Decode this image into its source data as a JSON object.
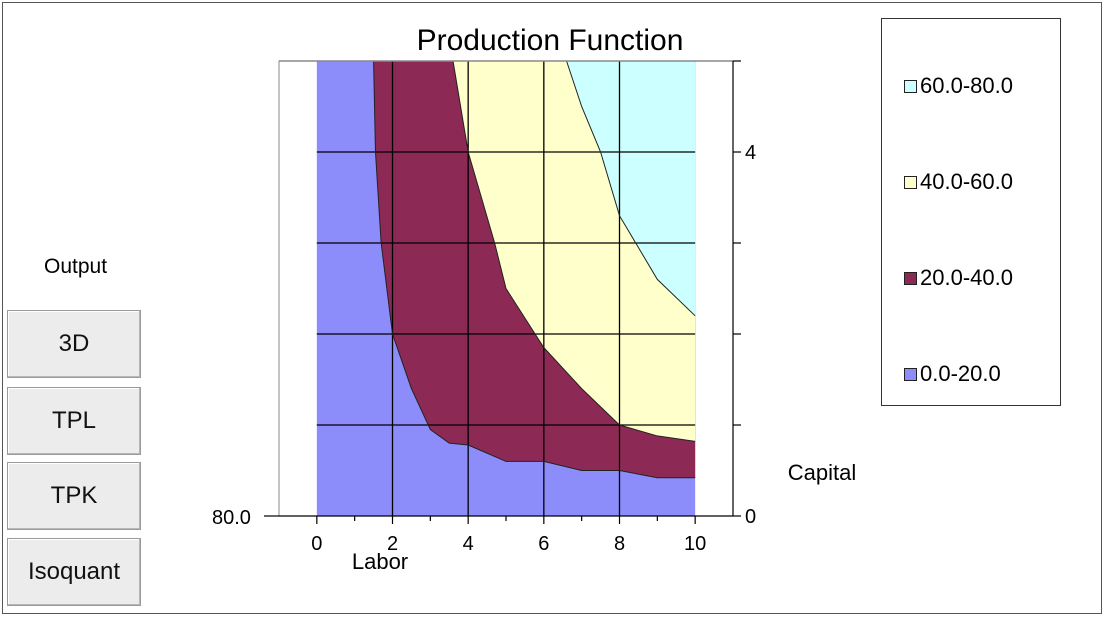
{
  "controls": {
    "output_label": "Output",
    "buttons": [
      {
        "label": "3D"
      },
      {
        "label": "TPL"
      },
      {
        "label": "TPK"
      },
      {
        "label": "Isoquant"
      }
    ]
  },
  "chart_data": {
    "type": "area",
    "title": "Production Function",
    "xlabel": "Labor",
    "ylabel": "Capital",
    "xlim": [
      -1,
      11
    ],
    "ylim": [
      0,
      5
    ],
    "x_ticks": [
      0,
      2,
      4,
      6,
      8,
      10
    ],
    "y_ticks_labeled": [
      0,
      4
    ],
    "y_ticks": [
      0,
      1,
      2,
      3,
      4,
      5
    ],
    "z_axis_label": "80.0",
    "grid": true,
    "legend_position": "right",
    "legend": [
      {
        "label": "60.0-80.0",
        "color": "#ccffff"
      },
      {
        "label": "40.0-60.0",
        "color": "#ffffcc"
      },
      {
        "label": "20.0-40.0",
        "color": "#8c2a55"
      },
      {
        "label": "0.0-20.0",
        "color": "#8c8cfa"
      }
    ],
    "background_band_color": "#ffffff",
    "contours": [
      {
        "level": 20,
        "points": [
          [
            1.5,
            5
          ],
          [
            1.55,
            4
          ],
          [
            1.7,
            3
          ],
          [
            2,
            2
          ],
          [
            2.5,
            1.4
          ],
          [
            3,
            0.95
          ],
          [
            3.5,
            0.8
          ],
          [
            4,
            0.78
          ],
          [
            5,
            0.6
          ],
          [
            6,
            0.6
          ],
          [
            7,
            0.5
          ],
          [
            8,
            0.5
          ],
          [
            9,
            0.42
          ],
          [
            10,
            0.42
          ]
        ]
      },
      {
        "level": 40,
        "points": [
          [
            3.6,
            5
          ],
          [
            4,
            4
          ],
          [
            4.7,
            3
          ],
          [
            5,
            2.5
          ],
          [
            6,
            1.85
          ],
          [
            7,
            1.4
          ],
          [
            8,
            1.0
          ],
          [
            9,
            0.88
          ],
          [
            10,
            0.82
          ]
        ]
      },
      {
        "level": 60,
        "points": [
          [
            6.6,
            5
          ],
          [
            7,
            4.5
          ],
          [
            7.5,
            4
          ],
          [
            8,
            3.3
          ],
          [
            9,
            2.6
          ],
          [
            10,
            2.2
          ]
        ]
      }
    ]
  }
}
